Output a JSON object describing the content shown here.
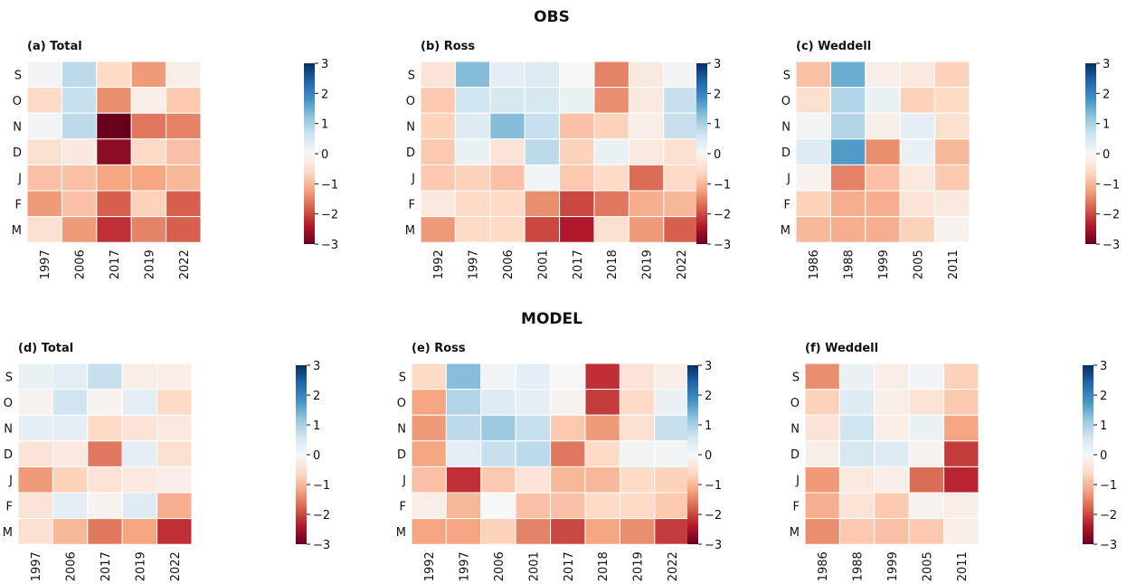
{
  "row_titles": [
    "OBS",
    "MODEL"
  ],
  "color_scale": {
    "min": -3,
    "max": 3,
    "ticks": [
      3,
      2,
      1,
      0,
      -1,
      -2,
      -3
    ],
    "colormap": "RdBu"
  },
  "chart_data": [
    {
      "type": "heatmap",
      "title": "(a) Total",
      "group": "OBS",
      "x": [
        "1997",
        "2006",
        "2017",
        "2019",
        "2022"
      ],
      "y": [
        "S",
        "O",
        "N",
        "D",
        "J",
        "F",
        "M"
      ],
      "values": [
        [
          0.1,
          0.8,
          -0.6,
          -1.3,
          -0.2
        ],
        [
          -0.6,
          0.7,
          -1.4,
          -0.2,
          -0.8
        ],
        [
          0.1,
          0.8,
          -3.0,
          -1.6,
          -1.5
        ],
        [
          -0.5,
          -0.3,
          -2.7,
          -0.6,
          -0.9
        ],
        [
          -0.9,
          -0.9,
          -1.2,
          -1.2,
          -1.0
        ],
        [
          -1.3,
          -0.9,
          -1.8,
          -0.7,
          -1.8
        ],
        [
          -0.5,
          -1.3,
          -2.2,
          -1.5,
          -1.8
        ]
      ]
    },
    {
      "type": "heatmap",
      "title": "(b) Ross",
      "group": "OBS",
      "x": [
        "1992",
        "1997",
        "2006",
        "2001",
        "2017",
        "2018",
        "2019",
        "2022"
      ],
      "y": [
        "S",
        "O",
        "N",
        "D",
        "J",
        "F",
        "M"
      ],
      "values": [
        [
          -0.4,
          1.3,
          0.3,
          0.4,
          0.0,
          -1.5,
          -0.3,
          0.1
        ],
        [
          -0.8,
          0.6,
          0.5,
          0.5,
          0.2,
          -1.4,
          -0.3,
          0.7
        ],
        [
          -0.7,
          0.4,
          1.3,
          0.7,
          -0.9,
          -0.7,
          -0.2,
          0.7
        ],
        [
          -0.8,
          0.2,
          -0.4,
          0.8,
          -0.7,
          0.2,
          -0.3,
          -0.5
        ],
        [
          -0.8,
          -0.7,
          -0.9,
          0.1,
          -0.8,
          -0.6,
          -1.7,
          -0.6
        ],
        [
          -0.3,
          -0.6,
          -0.6,
          -1.4,
          -2.0,
          -1.6,
          -1.1,
          -1.0
        ],
        [
          -1.3,
          -0.6,
          -0.6,
          -2.0,
          -2.4,
          -0.5,
          -1.3,
          -1.8
        ]
      ]
    },
    {
      "type": "heatmap",
      "title": "(c) Weddell",
      "group": "OBS",
      "x": [
        "1986",
        "1988",
        "1999",
        "2005",
        "2011"
      ],
      "y": [
        "S",
        "O",
        "N",
        "D",
        "J",
        "F",
        "M"
      ],
      "values": [
        [
          -0.9,
          1.5,
          -0.2,
          -0.3,
          -0.7
        ],
        [
          -0.5,
          0.9,
          0.2,
          -0.7,
          -0.6
        ],
        [
          0.1,
          0.9,
          -0.2,
          0.3,
          -0.5
        ],
        [
          0.4,
          1.7,
          -1.4,
          0.2,
          -1.0
        ],
        [
          -0.1,
          -1.5,
          -0.9,
          -0.3,
          -0.8
        ],
        [
          -0.7,
          -1.1,
          -1.1,
          -0.4,
          -0.3
        ],
        [
          -1.0,
          -1.1,
          -1.1,
          -0.7,
          -0.1
        ]
      ]
    },
    {
      "type": "heatmap",
      "title": "(d) Total",
      "group": "MODEL",
      "x": [
        "1997",
        "2006",
        "2017",
        "2019",
        "2022"
      ],
      "y": [
        "S",
        "O",
        "N",
        "D",
        "J",
        "F",
        "M"
      ],
      "values": [
        [
          0.2,
          0.3,
          0.7,
          -0.2,
          -0.2
        ],
        [
          -0.1,
          0.6,
          -0.1,
          0.3,
          -0.6
        ],
        [
          0.3,
          0.3,
          -0.6,
          -0.4,
          -0.3
        ],
        [
          -0.4,
          -0.3,
          -1.6,
          0.3,
          -0.5
        ],
        [
          -1.3,
          -0.7,
          -0.4,
          -0.3,
          -0.2
        ],
        [
          -0.4,
          0.3,
          -0.1,
          0.4,
          -1.1
        ],
        [
          -0.5,
          -1.0,
          -1.6,
          -1.2,
          -2.2
        ]
      ]
    },
    {
      "type": "heatmap",
      "title": "(e) Ross",
      "group": "MODEL",
      "x": [
        "1992",
        "1997",
        "2006",
        "2001",
        "2017",
        "2018",
        "2019",
        "2022"
      ],
      "y": [
        "S",
        "O",
        "N",
        "D",
        "J",
        "F",
        "M"
      ],
      "values": [
        [
          -0.6,
          1.3,
          0.1,
          0.3,
          0.0,
          -2.2,
          -0.4,
          -0.2
        ],
        [
          -1.2,
          0.9,
          0.4,
          0.3,
          -0.1,
          -2.1,
          -0.6,
          0.2
        ],
        [
          -1.3,
          0.8,
          1.1,
          0.7,
          -0.8,
          -1.3,
          -0.5,
          0.7
        ],
        [
          -1.2,
          0.3,
          0.7,
          0.8,
          -1.6,
          -0.6,
          0.1,
          0.1
        ],
        [
          -0.9,
          -2.2,
          -0.8,
          -0.4,
          -1.0,
          -1.0,
          -0.6,
          -0.7
        ],
        [
          -0.2,
          -1.0,
          0.0,
          -0.9,
          -0.9,
          -0.6,
          -0.6,
          -0.8
        ],
        [
          -1.2,
          -1.2,
          -0.7,
          -1.5,
          -2.0,
          -1.2,
          -1.4,
          -2.1
        ]
      ]
    },
    {
      "type": "heatmap",
      "title": "(f) Weddell",
      "group": "MODEL",
      "x": [
        "1986",
        "1988",
        "1999",
        "2005",
        "2011"
      ],
      "y": [
        "S",
        "O",
        "N",
        "D",
        "J",
        "F",
        "M"
      ],
      "values": [
        [
          -1.4,
          0.2,
          -0.2,
          0.1,
          -0.7
        ],
        [
          -0.7,
          0.4,
          -0.2,
          -0.4,
          -0.8
        ],
        [
          -0.4,
          0.6,
          -0.2,
          0.2,
          -1.2
        ],
        [
          -0.2,
          0.5,
          0.4,
          -0.1,
          -2.1
        ],
        [
          -1.3,
          -0.3,
          -0.2,
          -1.7,
          -2.3
        ],
        [
          -1.1,
          -0.4,
          -0.8,
          -0.1,
          -0.2
        ],
        [
          -1.4,
          -0.8,
          -0.9,
          -0.8,
          -0.2
        ]
      ]
    }
  ]
}
